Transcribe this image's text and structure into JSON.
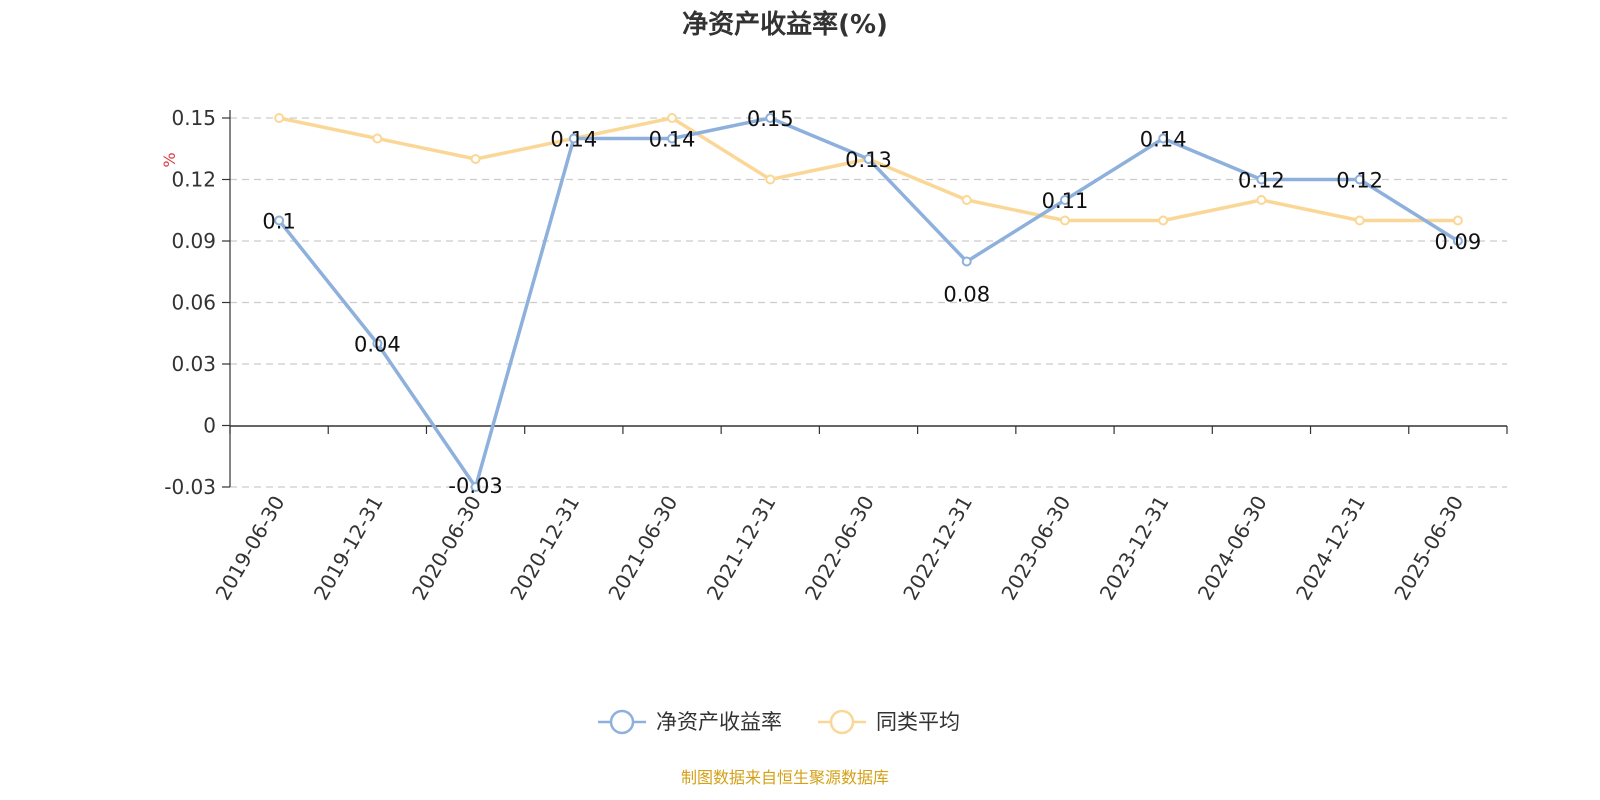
{
  "chart_data": {
    "type": "line",
    "title": "净资产收益率(%)",
    "ylabel": "%",
    "categories": [
      "2019-06-30",
      "2019-12-31",
      "2020-06-30",
      "2020-12-31",
      "2021-06-30",
      "2021-12-31",
      "2022-06-30",
      "2022-12-31",
      "2023-06-30",
      "2023-12-31",
      "2024-06-30",
      "2024-12-31",
      "2025-06-30"
    ],
    "yticks": [
      "0.15",
      "0.12",
      "0.09",
      "0.06",
      "0.03",
      "0",
      "-0.03"
    ],
    "ylim": [
      -0.03,
      0.15
    ],
    "grid": true,
    "legend_position": "bottom",
    "series": [
      {
        "name": "净资产收益率",
        "color": "#8eb0dc",
        "values": [
          0.1,
          0.04,
          -0.03,
          0.14,
          0.14,
          0.15,
          0.13,
          0.08,
          0.11,
          0.14,
          0.12,
          0.12,
          0.09
        ],
        "labels": [
          "0.1",
          "0.04",
          "-0.03",
          "0.14",
          "0.14",
          "0.15",
          "0.13",
          "0.08",
          "0.11",
          "0.14",
          "0.12",
          "0.12",
          "0.09"
        ]
      },
      {
        "name": "同类平均",
        "color": "#fbd797",
        "values": [
          0.15,
          0.14,
          0.13,
          0.14,
          0.15,
          0.12,
          0.13,
          0.11,
          0.1,
          0.1,
          0.11,
          0.1,
          0.1
        ]
      }
    ]
  },
  "footer": {
    "source": "制图数据来自恒生聚源数据库"
  }
}
